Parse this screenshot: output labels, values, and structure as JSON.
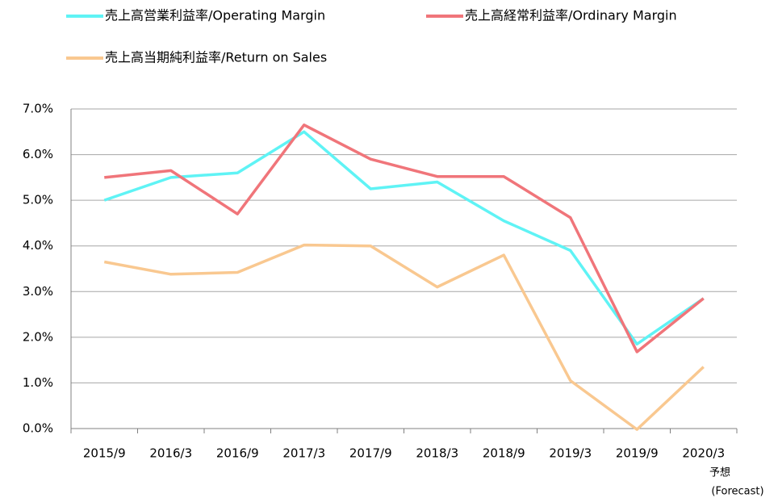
{
  "chart_data": {
    "type": "line",
    "categories": [
      "2015/9",
      "2016/3",
      "2016/9",
      "2017/3",
      "2017/9",
      "2018/3",
      "2018/9",
      "2019/3",
      "2019/9",
      "2020/3"
    ],
    "series": [
      {
        "name": "売上高営業利益率/Operating Margin",
        "color": "#5ff3f5",
        "values": [
          5.0,
          5.5,
          5.6,
          6.5,
          5.25,
          5.4,
          4.55,
          3.9,
          1.85,
          2.85
        ]
      },
      {
        "name": "売上高経常利益率/Ordinary Margin",
        "color": "#f0757a",
        "values": [
          5.5,
          5.65,
          4.7,
          6.65,
          5.9,
          5.52,
          5.52,
          4.62,
          1.68,
          2.85
        ]
      },
      {
        "name": "売上高当期純利益率/Return on Sales",
        "color": "#f9c890",
        "values": [
          3.65,
          3.38,
          3.42,
          4.02,
          4.0,
          3.1,
          3.8,
          1.05,
          -0.02,
          1.35
        ]
      }
    ],
    "annotations": [
      "予想",
      "(Forecast)"
    ],
    "ylim": [
      0,
      7
    ],
    "yticks": [
      {
        "value": 0,
        "label": "0.0%"
      },
      {
        "value": 1,
        "label": "1.0%"
      },
      {
        "value": 2,
        "label": "2.0%"
      },
      {
        "value": 3,
        "label": "3.0%"
      },
      {
        "value": 4,
        "label": "4.0%"
      },
      {
        "value": 5,
        "label": "5.0%"
      },
      {
        "value": 6,
        "label": "6.0%"
      },
      {
        "value": 7,
        "label": "7.0%"
      }
    ],
    "grid": true
  }
}
